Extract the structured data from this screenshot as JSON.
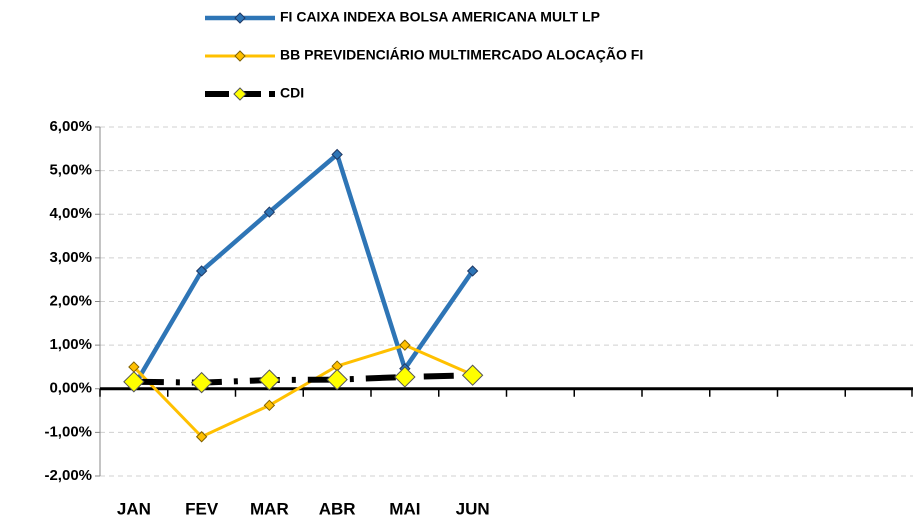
{
  "chart_data": {
    "type": "line",
    "categories": [
      "JAN",
      "FEV",
      "MAR",
      "ABR",
      "MAI",
      "JUN",
      null,
      null,
      null,
      null,
      null,
      null
    ],
    "series": [
      {
        "name": "FI CAIXA INDEXA BOLSA AMERICANA MULT LP",
        "color": "#2e75b6",
        "values": [
          0.05,
          2.7,
          4.05,
          5.37,
          0.46,
          2.7,
          null,
          null,
          null,
          null,
          null,
          null
        ]
      },
      {
        "name": "BB PREVIDENCIÁRIO MULTIMERCADO ALOCAÇÃO FI",
        "color": "#ffc000",
        "values": [
          0.5,
          -1.1,
          -0.38,
          0.52,
          1.0,
          0.32,
          null,
          null,
          null,
          null,
          null,
          null
        ]
      },
      {
        "name": "CDI",
        "color": "#000000",
        "values": [
          0.16,
          0.14,
          0.2,
          0.21,
          0.27,
          0.31,
          null,
          null,
          null,
          null,
          null,
          null
        ]
      }
    ],
    "ylim": [
      -2,
      6
    ],
    "yticks": [
      {
        "value": -2,
        "label": "-2,00%"
      },
      {
        "value": -1,
        "label": "-1,00%"
      },
      {
        "value": 0,
        "label": "0,00%"
      },
      {
        "value": 1,
        "label": "1,00%"
      },
      {
        "value": 2,
        "label": "2,00%"
      },
      {
        "value": 3,
        "label": "3,00%"
      },
      {
        "value": 4,
        "label": "4,00%"
      },
      {
        "value": 5,
        "label": "5,00%"
      },
      {
        "value": 6,
        "label": "6,00%"
      }
    ],
    "grid": true
  }
}
